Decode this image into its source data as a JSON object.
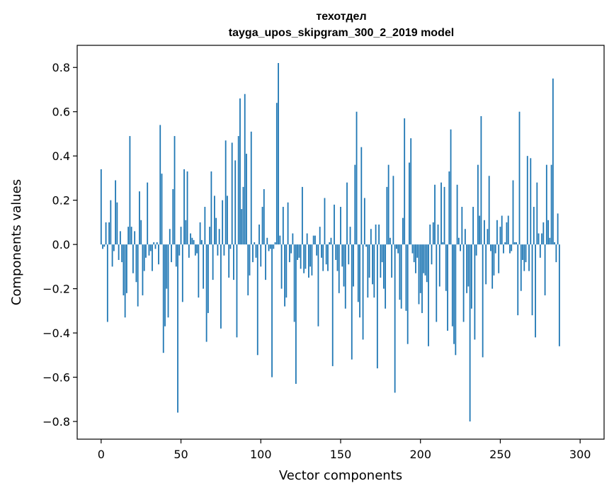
{
  "chart_data": {
    "type": "bar",
    "title": "техотдел",
    "subtitle": "tayga_upos_skipgram_300_2_2019 model",
    "xlabel": "Vector components",
    "ylabel": "Components values",
    "xlim": [
      -15,
      315
    ],
    "ylim": [
      -0.88,
      0.9
    ],
    "xticks": [
      0,
      50,
      100,
      150,
      200,
      250,
      300
    ],
    "xtick_labels": [
      "0",
      "50",
      "100",
      "150",
      "200",
      "250",
      "300"
    ],
    "yticks": [
      -0.8,
      -0.6,
      -0.4,
      -0.2,
      0.0,
      0.2,
      0.4,
      0.6,
      0.8
    ],
    "ytick_labels": [
      "−0.8",
      "−0.6",
      "−0.4",
      "−0.2",
      "0.0",
      "0.2",
      "0.4",
      "0.6",
      "0.8"
    ],
    "bar_color": "#1f77b4",
    "grid": false,
    "values": [
      0.34,
      -0.02,
      -0.01,
      0.1,
      -0.35,
      0.1,
      0.2,
      -0.1,
      -0.03,
      0.29,
      0.19,
      -0.07,
      0.06,
      -0.08,
      -0.23,
      -0.33,
      -0.22,
      0.08,
      0.49,
      0.08,
      -0.13,
      0.06,
      -0.17,
      -0.28,
      0.24,
      0.11,
      -0.23,
      -0.12,
      -0.06,
      0.28,
      -0.05,
      -0.03,
      -0.12,
      0.01,
      -0.02,
      0.01,
      -0.09,
      0.54,
      0.32,
      -0.49,
      -0.37,
      -0.2,
      -0.33,
      0.07,
      -0.08,
      0.25,
      0.49,
      -0.1,
      -0.76,
      -0.05,
      0.08,
      -0.26,
      0.34,
      0.11,
      0.33,
      -0.06,
      0.05,
      0.03,
      0.02,
      -0.05,
      -0.04,
      -0.24,
      0.1,
      0.02,
      -0.2,
      0.17,
      -0.44,
      -0.31,
      0.08,
      0.33,
      -0.16,
      0.22,
      0.12,
      -0.05,
      0.07,
      -0.38,
      0.2,
      -0.05,
      0.47,
      0.22,
      -0.15,
      -0.02,
      0.46,
      -0.16,
      0.38,
      -0.42,
      0.49,
      0.66,
      0.16,
      0.26,
      0.68,
      0.41,
      -0.23,
      -0.14,
      0.51,
      -0.08,
      0.01,
      -0.06,
      -0.5,
      0.09,
      -0.1,
      0.17,
      0.25,
      -0.16,
      0.03,
      -0.03,
      -0.02,
      -0.6,
      -0.02,
      0.01,
      0.64,
      0.82,
      0.04,
      -0.2,
      0.17,
      -0.28,
      -0.24,
      0.19,
      -0.08,
      -0.04,
      0.05,
      -0.35,
      -0.63,
      -0.07,
      -0.06,
      -0.11,
      0.26,
      -0.13,
      -0.11,
      0.05,
      -0.15,
      -0.1,
      -0.14,
      0.04,
      0.04,
      -0.05,
      -0.37,
      0.08,
      -0.06,
      -0.12,
      0.21,
      -0.09,
      -0.12,
      0.01,
      0.03,
      -0.55,
      0.18,
      -0.07,
      -0.12,
      -0.22,
      0.17,
      -0.1,
      -0.19,
      -0.29,
      0.28,
      -0.09,
      0.08,
      -0.52,
      -0.19,
      0.36,
      0.6,
      -0.26,
      -0.33,
      0.44,
      -0.43,
      0.21,
      -0.01,
      -0.24,
      -0.15,
      0.07,
      -0.18,
      -0.24,
      0.09,
      -0.56,
      0.09,
      -0.15,
      -0.08,
      -0.2,
      -0.29,
      0.26,
      0.36,
      0.03,
      -0.15,
      0.31,
      -0.67,
      -0.02,
      -0.04,
      -0.25,
      -0.29,
      0.12,
      0.57,
      -0.3,
      -0.45,
      0.37,
      0.48,
      -0.04,
      -0.08,
      -0.13,
      -0.06,
      -0.27,
      -0.22,
      -0.31,
      -0.13,
      -0.14,
      -0.17,
      -0.46,
      0.09,
      -0.09,
      0.1,
      0.27,
      -0.35,
      0.09,
      -0.19,
      0.28,
      0.01,
      0.26,
      -0.21,
      -0.39,
      0.33,
      0.52,
      -0.37,
      -0.45,
      -0.5,
      0.27,
      0.03,
      -0.03,
      0.17,
      -0.35,
      0.07,
      -0.22,
      -0.19,
      -0.8,
      -0.29,
      0.17,
      -0.43,
      -0.05,
      0.36,
      0.13,
      0.58,
      -0.51,
      0.11,
      -0.18,
      0.07,
      0.31,
      -0.03,
      -0.2,
      -0.14,
      -0.04,
      0.11,
      -0.13,
      0.08,
      0.13,
      -0.04,
      0.01,
      0.1,
      0.13,
      -0.04,
      -0.03,
      0.29,
      0.01,
      0.01,
      -0.32,
      0.6,
      -0.21,
      -0.07,
      -0.12,
      -0.08,
      0.4,
      -0.12,
      0.39,
      -0.32,
      0.17,
      -0.42,
      0.28,
      0.05,
      -0.06,
      0.05,
      0.1,
      -0.23,
      0.36,
      0.11,
      0.03,
      0.36,
      0.75,
      0.01,
      -0.08,
      0.14,
      -0.46
    ]
  }
}
